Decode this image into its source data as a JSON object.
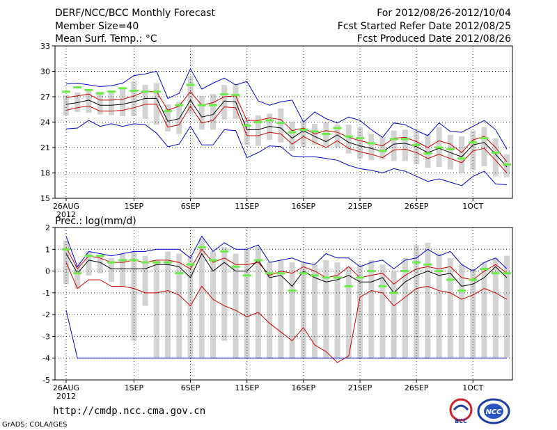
{
  "header": {
    "title": "DERF/NCC/BCC Monthly Forecast",
    "member_size": "Member Size=40",
    "variable1": "Mean Surf. Temp.: °C",
    "period": "For 2012/08/26-2012/10/04",
    "refer_date": "Fcst Started Refer Date 2012/08/25",
    "produced_date": "Fcst Produced Date 2012/08/26"
  },
  "footer": {
    "url": "http://cmdp.ncc.cma.gov.cn",
    "credit": "GrADS: COLA/IGES",
    "logo_bcc": "BCC",
    "logo_ncc": "NCC"
  },
  "colors": {
    "max_min": "#0000cc",
    "spread": "#cc0000",
    "mean": "#000000",
    "box": "#d3d3d3",
    "marker": "#66ee44",
    "grid": "#333333"
  },
  "chart_data": [
    {
      "type": "line",
      "title": "Mean Surf. Temp.: °C",
      "xlabel": "",
      "ylabel": "°C",
      "days": 40,
      "x_tick_labels": [
        {
          "day": 0,
          "label": "26AUG",
          "sub": "2012"
        },
        {
          "day": 6,
          "label": "1SEP"
        },
        {
          "day": 11,
          "label": "6SEP"
        },
        {
          "day": 16,
          "label": "11SEP"
        },
        {
          "day": 21,
          "label": "16SEP"
        },
        {
          "day": 26,
          "label": "21SEP"
        },
        {
          "day": 31,
          "label": "26SEP"
        },
        {
          "day": 36,
          "label": "1OCT"
        }
      ],
      "ylim": [
        15,
        33
      ],
      "y_ticks": [
        15,
        18,
        21,
        24,
        27,
        30,
        33
      ],
      "grid": true,
      "series": [
        {
          "name": "max",
          "role": "max",
          "values": [
            28.5,
            28.6,
            28.4,
            28.2,
            28.3,
            28.6,
            29.5,
            29.7,
            30.0,
            26.8,
            27.4,
            30.3,
            27.9,
            28.6,
            29.2,
            28.4,
            28.8,
            26.5,
            26.0,
            26.4,
            26.6,
            24.0,
            25.2,
            24.4,
            23.9,
            24.6,
            24.2,
            23.1,
            22.2,
            23.9,
            23.7,
            23.0,
            22.4,
            23.9,
            22.9,
            22.8,
            23.5,
            24.2,
            23.1,
            20.8
          ]
        },
        {
          "name": "upper spread",
          "role": "upper",
          "values": [
            26.9,
            27.1,
            27.3,
            26.6,
            26.6,
            26.7,
            27.1,
            27.6,
            27.6,
            25.4,
            25.9,
            27.6,
            26.0,
            26.3,
            27.0,
            27.1,
            24.2,
            24.2,
            24.5,
            24.3,
            23.0,
            23.3,
            22.6,
            23.0,
            22.8,
            22.2,
            21.8,
            21.5,
            21.2,
            22.1,
            22.2,
            21.7,
            21.0,
            21.8,
            21.4,
            20.4,
            21.9,
            22.3,
            21.0,
            19.3
          ]
        },
        {
          "name": "ensemble mean",
          "role": "mean",
          "values": [
            26.1,
            26.3,
            26.6,
            26.0,
            26.0,
            26.1,
            26.4,
            26.8,
            26.8,
            24.1,
            24.4,
            26.6,
            24.6,
            24.9,
            26.5,
            26.4,
            23.1,
            23.1,
            23.5,
            23.3,
            22.1,
            23.0,
            22.3,
            21.7,
            22.5,
            21.6,
            21.2,
            20.9,
            20.5,
            21.4,
            21.5,
            21.1,
            20.4,
            20.9,
            20.4,
            19.9,
            21.3,
            21.6,
            20.2,
            18.7
          ]
        },
        {
          "name": "lower spread",
          "role": "lower",
          "values": [
            25.4,
            25.7,
            25.9,
            25.3,
            25.3,
            25.4,
            25.7,
            26.1,
            26.1,
            23.4,
            23.7,
            25.9,
            23.9,
            24.2,
            25.8,
            25.7,
            22.4,
            22.4,
            22.8,
            22.6,
            21.4,
            22.3,
            21.6,
            21.0,
            21.8,
            20.9,
            20.5,
            20.2,
            19.8,
            20.7,
            20.8,
            20.4,
            19.7,
            20.2,
            19.7,
            19.2,
            20.6,
            20.9,
            19.5,
            18.0
          ]
        },
        {
          "name": "min",
          "role": "min",
          "values": [
            23.2,
            23.3,
            24.2,
            23.5,
            23.8,
            23.5,
            23.8,
            23.7,
            22.7,
            21.1,
            21.4,
            23.5,
            21.3,
            21.3,
            23.1,
            23.0,
            19.8,
            20.4,
            21.2,
            21.1,
            20.0,
            19.9,
            19.9,
            19.7,
            19.5,
            18.9,
            18.5,
            18.3,
            18.0,
            18.5,
            18.2,
            17.6,
            17.0,
            17.3,
            16.9,
            16.5,
            17.6,
            18.2,
            16.7,
            16.6
          ]
        }
      ],
      "box_top": [
        27.2,
        27.5,
        27.9,
        27.6,
        27.5,
        28.1,
        28.8,
        28.4,
        28.6,
        26.1,
        26.4,
        29.4,
        27.1,
        27.3,
        28.4,
        28.5,
        24.6,
        24.8,
        25.0,
        25.6,
        24.0,
        24.2,
        23.8,
        24.0,
        23.7,
        23.7,
        23.4,
        22.6,
        22.2,
        23.0,
        23.1,
        23.0,
        22.6,
        23.4,
        22.5,
        22.3,
        23.0,
        23.4,
        22.1,
        20.2
      ],
      "box_bottom": [
        24.8,
        25.2,
        25.1,
        24.9,
        24.8,
        24.7,
        24.7,
        24.4,
        23.7,
        22.9,
        22.6,
        25.0,
        23.1,
        23.1,
        24.3,
        24.4,
        21.3,
        21.2,
        21.9,
        21.6,
        20.6,
        21.1,
        21.3,
        21.2,
        21.0,
        20.3,
        19.7,
        19.5,
        19.6,
        19.4,
        19.4,
        19.0,
        18.6,
        18.7,
        18.4,
        18.0,
        18.3,
        18.8,
        17.6,
        17.5
      ],
      "markers": [
        27.6,
        28.1,
        27.8,
        27.4,
        27.6,
        28.0,
        27.7,
        27.6,
        27.6,
        25.3,
        26.0,
        28.4,
        26.0,
        26.0,
        27.3,
        27.2,
        23.6,
        24.0,
        24.2,
        23.9,
        22.8,
        23.1,
        22.9,
        22.6,
        23.3,
        22.3,
        22.1,
        21.5,
        20.6,
        22.0,
        22.0,
        21.3,
        20.3,
        21.0,
        20.8,
        19.7,
        21.6,
        22.1,
        20.4,
        19.0
      ]
    },
    {
      "type": "line",
      "title": "Prec.: log(mm/d)",
      "xlabel": "",
      "ylabel": "log(mm/d)",
      "days": 40,
      "x_tick_labels": [
        {
          "day": 0,
          "label": "26AUG",
          "sub": "2012"
        },
        {
          "day": 6,
          "label": "1SEP"
        },
        {
          "day": 11,
          "label": "6SEP"
        },
        {
          "day": 16,
          "label": "11SEP"
        },
        {
          "day": 21,
          "label": "16SEP"
        },
        {
          "day": 26,
          "label": "21SEP"
        },
        {
          "day": 31,
          "label": "26SEP"
        },
        {
          "day": 36,
          "label": "1OCT"
        }
      ],
      "ylim": [
        -5,
        2
      ],
      "y_ticks": [
        -5,
        -4,
        -3,
        -2,
        -1,
        0,
        1,
        2
      ],
      "grid": true,
      "series": [
        {
          "name": "max",
          "role": "max",
          "values": [
            1.6,
            0.2,
            0.9,
            0.8,
            0.7,
            0.8,
            0.9,
            0.9,
            1.0,
            1.0,
            1.0,
            0.6,
            1.6,
            0.9,
            1.3,
            1.0,
            1.0,
            1.2,
            0.4,
            0.5,
            0.6,
            0.4,
            0.3,
            0.8,
            0.6,
            0.6,
            0.2,
            0.4,
            0.5,
            0.1,
            0.5,
            0.6,
            1.0,
            0.7,
            0.9,
            0.3,
            0.0,
            0.4,
            0.6,
            0.1
          ]
        },
        {
          "name": "upper spread",
          "role": "upper",
          "values": [
            1.1,
            0.1,
            0.7,
            0.6,
            0.4,
            0.4,
            0.5,
            0.4,
            0.5,
            0.5,
            0.4,
            0.1,
            1.0,
            0.4,
            0.6,
            0.3,
            0.3,
            0.4,
            -0.2,
            0.0,
            -0.1,
            0.2,
            0.0,
            -0.3,
            -0.2,
            0.2,
            -0.3,
            -0.2,
            -0.1,
            -0.6,
            -0.2,
            0.1,
            0.2,
            0.1,
            0.2,
            -0.3,
            -0.4,
            0.0,
            0.3,
            -0.1
          ]
        },
        {
          "name": "ensemble mean",
          "role": "mean",
          "values": [
            0.8,
            -0.1,
            0.5,
            0.4,
            0.1,
            0.1,
            0.1,
            0.1,
            0.3,
            0.3,
            0.2,
            -0.3,
            0.8,
            0.0,
            0.4,
            0.0,
            0.0,
            0.5,
            -0.3,
            -0.2,
            -0.7,
            0.0,
            -0.3,
            -0.5,
            -0.4,
            -0.2,
            -0.5,
            -0.5,
            -0.3,
            -1.0,
            -0.5,
            -0.2,
            0.0,
            -0.2,
            -0.1,
            -0.7,
            -0.6,
            -0.3,
            0.2,
            -0.3
          ]
        },
        {
          "name": "lower spread",
          "role": "lower",
          "values": [
            0.4,
            -0.8,
            -0.4,
            -0.4,
            -0.7,
            -0.7,
            -0.8,
            -1.0,
            -1.0,
            -0.9,
            -1.1,
            -1.6,
            -0.7,
            -1.3,
            -1.6,
            -1.8,
            -2.1,
            -1.9,
            -2.4,
            -2.8,
            -3.2,
            -2.6,
            -3.4,
            -3.7,
            -4.2,
            -3.9,
            -1.2,
            -0.9,
            -1.0,
            -1.6,
            -1.2,
            -0.8,
            -0.7,
            -0.9,
            -1.0,
            -1.3,
            -1.1,
            -0.8,
            -1.0,
            -1.3
          ]
        },
        {
          "name": "min",
          "role": "min",
          "values": [
            -1.8,
            -4.0,
            -4.0,
            -4.0,
            -4.0,
            -4.0,
            -4.0,
            -4.0,
            -4.0,
            -4.0,
            -4.0,
            -4.0,
            -4.0,
            -4.0,
            -4.0,
            -4.0,
            -4.0,
            -4.0,
            -4.0,
            -4.0,
            -4.0,
            -4.0,
            -4.0,
            -4.0,
            -4.0,
            -4.0,
            -4.0,
            -4.0,
            -4.0,
            -4.0,
            -4.0,
            -4.0,
            -4.0,
            -4.0,
            -4.0,
            -4.0,
            -4.0,
            -4.0,
            -4.0,
            -4.0
          ]
        },
        {
          "name": "lower spread (second segment)",
          "role": "lower",
          "values": [
            0.4,
            -0.8,
            -0.4,
            -0.4,
            -0.7,
            -0.7,
            -0.8,
            -1.0,
            -1.0,
            -0.9,
            -1.1,
            -1.6,
            -0.7,
            -1.3,
            -1.6,
            -1.8,
            -2.1,
            -1.9,
            -2.4,
            -2.8,
            -3.2,
            -2.6,
            -3.4,
            -3.7,
            -4.2,
            -3.9,
            -1.2,
            -0.9,
            -1.0,
            -1.6,
            -1.2,
            -0.8,
            -0.7,
            -0.9,
            -1.0,
            -1.3,
            -1.1,
            -0.8,
            -1.0,
            -1.3
          ]
        }
      ],
      "box_top": [
        1.4,
        0.3,
        0.9,
        0.7,
        0.6,
        0.8,
        0.9,
        0.7,
        0.5,
        0.9,
        0.8,
        0.7,
        1.5,
        0.9,
        1.1,
        0.8,
        1.0,
        1.1,
        0.4,
        0.5,
        0.4,
        0.4,
        0.3,
        0.5,
        0.4,
        0.2,
        0.3,
        0.5,
        0.3,
        0.0,
        0.6,
        1.2,
        1.3,
        0.8,
        0.6,
        0.3,
        0.1,
        0.4,
        0.6,
        0.7
      ],
      "box_bottom": [
        -0.6,
        -0.8,
        -0.2,
        -0.1,
        -0.5,
        -0.7,
        -3.2,
        -1.6,
        -4.0,
        -4.0,
        -4.0,
        -4.0,
        -4.0,
        -4.0,
        -3.2,
        -4.0,
        -4.0,
        -4.0,
        -4.0,
        -4.0,
        -4.0,
        -4.0,
        -4.0,
        -4.0,
        -4.0,
        -4.0,
        -4.0,
        -4.0,
        -4.0,
        -4.0,
        -4.0,
        -4.0,
        -4.0,
        -4.0,
        -4.0,
        -4.0,
        -4.0,
        -4.0,
        -4.0,
        -4.0
      ],
      "markers": [
        1.0,
        -0.1,
        0.7,
        0.7,
        0.4,
        0.5,
        0.5,
        0.4,
        0.4,
        0.4,
        -0.1,
        0.3,
        1.1,
        0.5,
        0.9,
        0.2,
        -0.2,
        0.5,
        -0.1,
        -0.1,
        -0.9,
        -0.1,
        -0.2,
        -0.3,
        -0.3,
        -0.7,
        -0.3,
        0.0,
        -0.7,
        -1.0,
        0.0,
        0.4,
        0.3,
        0.0,
        -0.4,
        -0.9,
        -0.4,
        0.1,
        -0.1,
        -0.1
      ]
    }
  ],
  "y_labels2": "Prec.: log(mm/d)"
}
